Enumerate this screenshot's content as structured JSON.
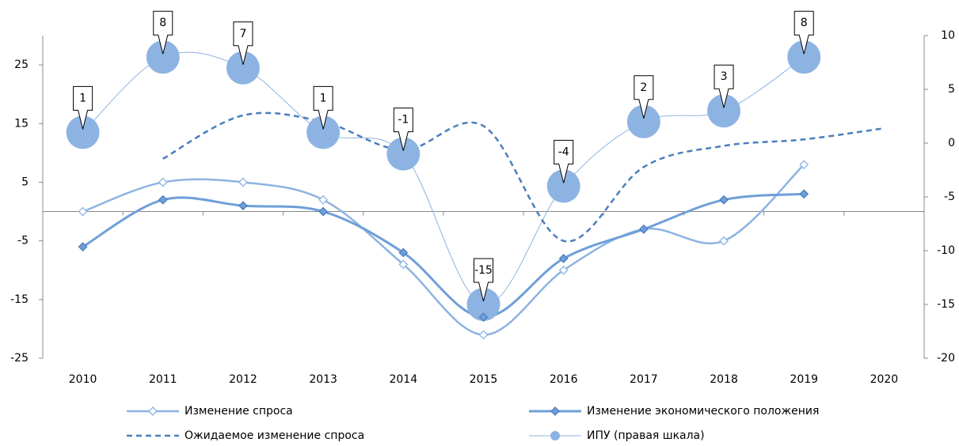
{
  "chart_data": {
    "type": "line",
    "categories": [
      "2010",
      "2011",
      "2012",
      "2013",
      "2014",
      "2015",
      "2016",
      "2017",
      "2018",
      "2019",
      "2020"
    ],
    "ylim": [
      -25,
      30
    ],
    "yticks": [
      -25,
      -15,
      -5,
      5,
      15,
      25
    ],
    "y2lim": [
      -20,
      10
    ],
    "y2ticks": [
      -20,
      -15,
      -10,
      -5,
      0,
      5,
      10
    ],
    "legend": "bottom",
    "series": [
      {
        "name": "Изменение спроса",
        "color": "#8db3e2",
        "marker": "diamond-open",
        "width": 2.5,
        "values": [
          0,
          5,
          5,
          2,
          -9,
          -21,
          -10,
          -3,
          -5,
          8,
          null
        ]
      },
      {
        "name": "Изменение экономического положения",
        "color": "#6f9fd8",
        "marker": "diamond",
        "width": 3,
        "values": [
          -6,
          2,
          1,
          0,
          -7,
          -18,
          -8,
          -3,
          2,
          3,
          null
        ]
      },
      {
        "name": "Ожидаемое изменение спроса",
        "color": "#4a7ebb",
        "dash": true,
        "width": 2.5,
        "values": [
          null,
          9,
          16.4,
          15.3,
          10.5,
          14.6,
          -5,
          7.6,
          11.2,
          12.3,
          14.2
        ]
      },
      {
        "name": "ИПУ (правая шкала)",
        "color": "#8db3e2",
        "marker": "bubble",
        "width": 1,
        "axis": "y2",
        "values": [
          1,
          8,
          7,
          1,
          -1,
          -15,
          -4,
          2,
          3,
          8,
          null
        ]
      }
    ]
  }
}
